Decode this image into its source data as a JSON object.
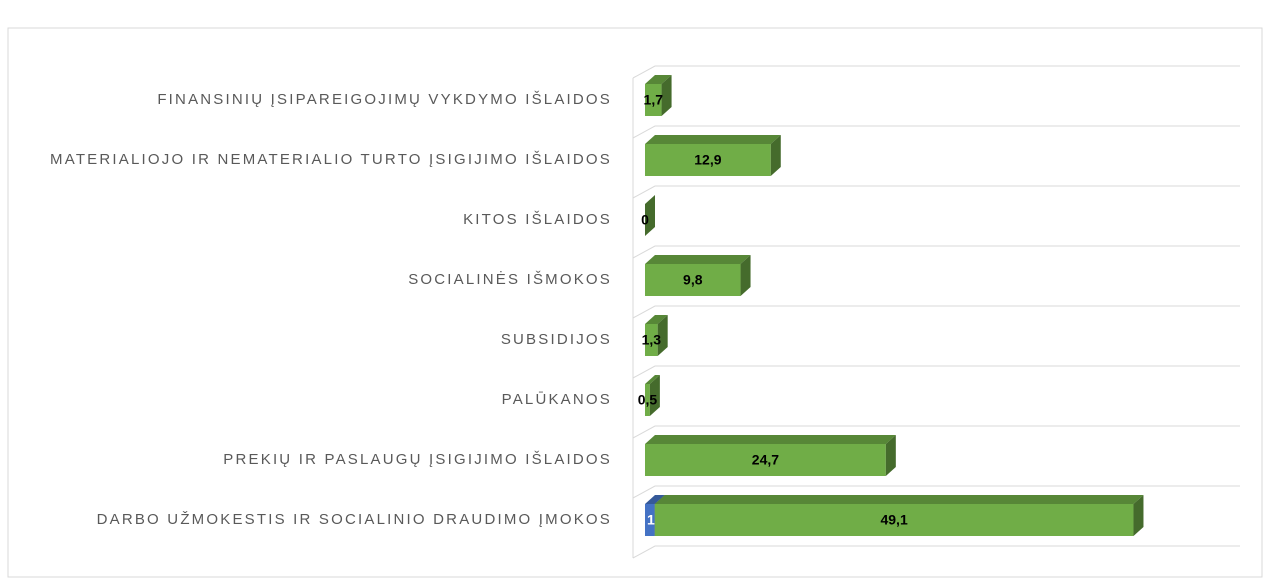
{
  "chart_data": {
    "type": "bar3d_horizontal_stacked",
    "categories": [
      "FINANSINIŲ ĮSIPAREIGOJIMŲ VYKDYMO IŠLAIDOS",
      "MATERIALIOJO IR NEMATERIALIO TURTO ĮSIGIJIMO IŠLAIDOS",
      "KITOS IŠLAIDOS",
      "SOCIALINĖS IŠMOKOS",
      "SUBSIDIJOS",
      "PALŪKANOS",
      "PREKIŲ IR PASLAUGŲ ĮSIGIJIMO IŠLAIDOS",
      "DARBO UŽMOKESTIS IR SOCIALINIO DRAUDIMO ĮMOKOS"
    ],
    "series": [
      {
        "color": "#4472c4",
        "values": [
          null,
          null,
          null,
          null,
          null,
          null,
          null,
          1
        ],
        "value_labels": [
          null,
          null,
          null,
          null,
          null,
          null,
          null,
          "1"
        ]
      },
      {
        "color": "#70ad47",
        "values": [
          1.7,
          12.9,
          0,
          9.8,
          1.3,
          0.5,
          24.7,
          49.1
        ],
        "value_labels": [
          "1,7",
          "12,9",
          "0",
          "9,8",
          "1,3",
          "0,5",
          "24,7",
          "49,1"
        ]
      }
    ],
    "xlim": [
      0,
      60
    ]
  }
}
